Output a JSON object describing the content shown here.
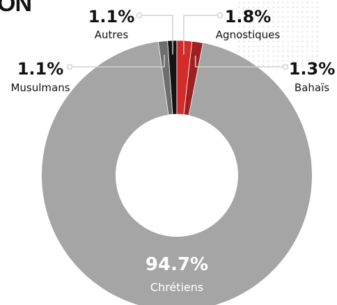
{
  "header": {
    "partial_title": "ON"
  },
  "chart_data": {
    "type": "pie",
    "style": "donut",
    "categories": [
      "Chrétiens",
      "Musulmans",
      "Autres",
      "Agnostiques",
      "Bahaïs"
    ],
    "values": [
      94.7,
      1.1,
      1.1,
      1.8,
      1.3
    ],
    "labels": [
      "94.7%",
      "1.1%",
      "1.1%",
      "1.8%",
      "1.3%"
    ],
    "colors": [
      "#a5a5a5",
      "#6e6e6e",
      "#141414",
      "#d42b2b",
      "#a01f1f"
    ],
    "legend": "none (labels placed around the ring)"
  }
}
